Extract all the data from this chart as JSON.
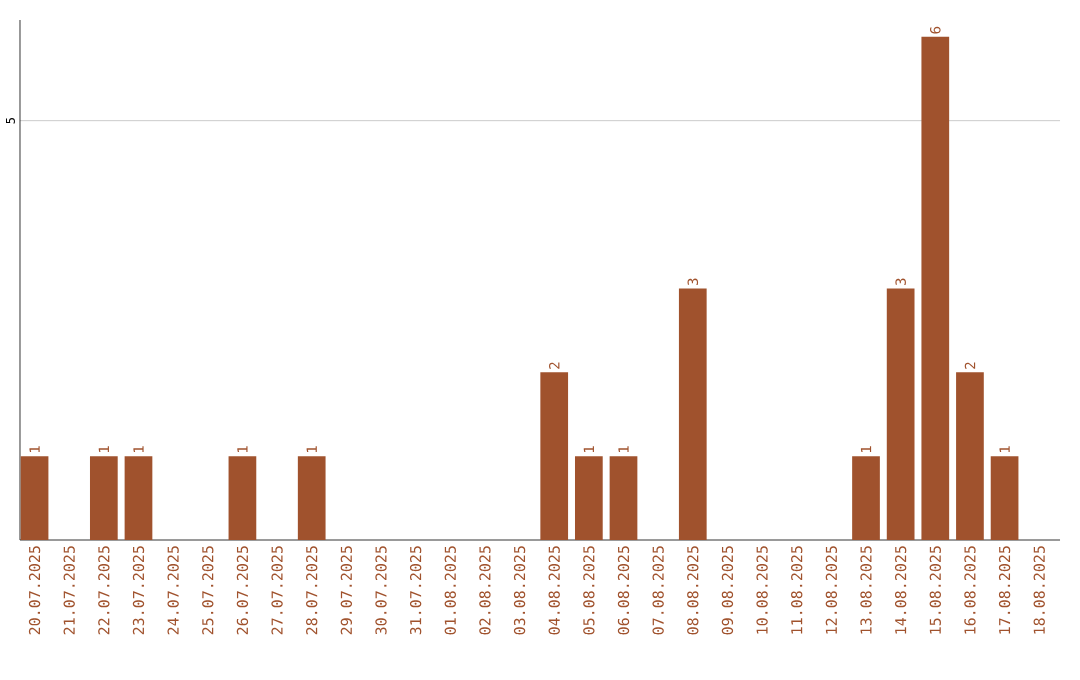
{
  "chart_data": {
    "type": "bar",
    "categories": [
      "20.07.2025",
      "21.07.2025",
      "22.07.2025",
      "23.07.2025",
      "24.07.2025",
      "25.07.2025",
      "26.07.2025",
      "27.07.2025",
      "28.07.2025",
      "29.07.2025",
      "30.07.2025",
      "31.07.2025",
      "01.08.2025",
      "02.08.2025",
      "03.08.2025",
      "04.08.2025",
      "05.08.2025",
      "06.08.2025",
      "07.08.2025",
      "08.08.2025",
      "09.08.2025",
      "10.08.2025",
      "11.08.2025",
      "12.08.2025",
      "13.08.2025",
      "14.08.2025",
      "15.08.2025",
      "16.08.2025",
      "17.08.2025",
      "18.08.2025"
    ],
    "values": [
      1,
      0,
      1,
      1,
      0,
      0,
      1,
      0,
      1,
      0,
      0,
      0,
      0,
      0,
      0,
      2,
      1,
      1,
      0,
      3,
      0,
      0,
      0,
      0,
      1,
      3,
      6,
      2,
      1,
      0
    ],
    "value_labels": [
      "1",
      null,
      "1",
      "1",
      null,
      null,
      "1",
      null,
      "1",
      null,
      null,
      null,
      null,
      null,
      null,
      "2",
      "1",
      "1",
      null,
      "3",
      null,
      null,
      null,
      null,
      "1",
      "3",
      "6",
      "2",
      "1",
      null
    ],
    "color": "#a0522d",
    "ylim": [
      0,
      6.2
    ],
    "yticks": [
      5
    ],
    "grid": "y"
  }
}
